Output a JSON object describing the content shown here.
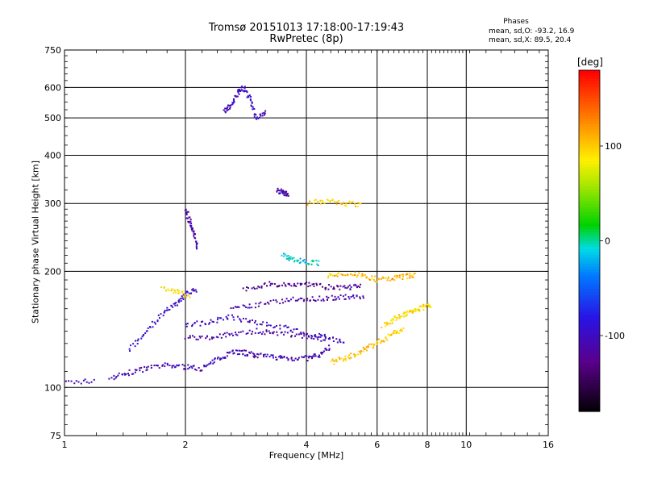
{
  "header": {
    "title_line1": "Tromsø 20151013 17:18:00-17:19:43",
    "title_line2": "RwPretec (8p)",
    "phases_title": "Phases",
    "phases_o": "mean, sd,O:  -93.2, 16.9",
    "phases_x": "mean, sd,X:  89.5, 20.4"
  },
  "colors": {
    "grid": "#000000",
    "background": "#ffffff"
  },
  "colorbar": {
    "label": "[deg]",
    "min": -180,
    "max": 180,
    "ticks": [
      100,
      0,
      -100
    ],
    "tick_labels": [
      "100",
      "0",
      "-100"
    ]
  },
  "chart_data": {
    "type": "scatter",
    "title": "Tromsø 20151013 17:18:00-17:19:43",
    "subtitle": "RwPretec (8p)",
    "xlabel": "Frequency [MHz]",
    "ylabel": "Stationary phase Virtual Height [km]",
    "x_scale": "log",
    "y_scale": "log",
    "xlim": [
      1,
      16
    ],
    "ylim": [
      75,
      750
    ],
    "x_gridlines": [
      2,
      4,
      6,
      8,
      10
    ],
    "y_gridlines": [
      100,
      200,
      300,
      400,
      500,
      600
    ],
    "x_ticks": [
      1,
      2,
      4,
      6,
      8,
      10,
      16
    ],
    "x_tick_labels": [
      "1",
      "2",
      "4",
      "6",
      "8",
      "10",
      "16"
    ],
    "y_ticks": [
      75,
      100,
      200,
      300,
      400,
      500,
      600,
      750
    ],
    "y_tick_labels": [
      "75",
      "100",
      "200",
      "300",
      "400",
      "500",
      "600",
      "750"
    ],
    "color_variable": "phase [deg]",
    "traces": [
      {
        "f": [
          1.0,
          1.2
        ],
        "h": [
          103,
          104
        ],
        "phase": -110
      },
      {
        "f": [
          1.3,
          1.45,
          1.6,
          1.8,
          2.0,
          2.2,
          2.4,
          2.6,
          2.8,
          3.0,
          3.3,
          3.6,
          4.0,
          4.3,
          4.6
        ],
        "h": [
          106,
          109,
          112,
          114,
          113,
          112,
          118,
          124,
          123,
          121,
          120,
          119,
          119,
          121,
          128
        ],
        "phase": -105
      },
      {
        "f": [
          4.6,
          5.0,
          5.4,
          5.8,
          6.2,
          6.6,
          7.0
        ],
        "h": [
          116,
          119,
          123,
          128,
          133,
          138,
          142
        ],
        "phase": 105
      },
      {
        "f": [
          6.2,
          6.6,
          7.0,
          7.4,
          7.8,
          8.2
        ],
        "h": [
          145,
          150,
          155,
          158,
          161,
          164
        ],
        "phase": 95
      },
      {
        "f": [
          1.45,
          1.6,
          1.75,
          1.9,
          2.0,
          2.15
        ],
        "h": [
          125,
          140,
          155,
          165,
          175,
          180
        ],
        "phase": -95
      },
      {
        "f": [
          2.0,
          2.3,
          2.6,
          3.0,
          3.5,
          4.0,
          4.5,
          5.0
        ],
        "h": [
          145,
          148,
          152,
          148,
          143,
          138,
          135,
          130
        ],
        "phase": -100
      },
      {
        "f": [
          2.0,
          2.3,
          2.6,
          3.0,
          3.4,
          4.0,
          4.5
        ],
        "h": [
          135,
          134,
          138,
          140,
          138,
          136,
          132
        ],
        "phase": -115
      },
      {
        "f": [
          2.6,
          3.0,
          3.5,
          4.0,
          4.5,
          5.0,
          5.6
        ],
        "h": [
          160,
          163,
          168,
          170,
          170,
          172,
          170
        ],
        "phase": -110
      },
      {
        "f": [
          2.8,
          3.2,
          3.6,
          4.0,
          4.5,
          5.0,
          5.5
        ],
        "h": [
          180,
          185,
          185,
          186,
          182,
          181,
          184
        ],
        "phase": -125
      },
      {
        "f": [
          1.75,
          1.9,
          2.05
        ],
        "h": [
          180,
          177,
          172
        ],
        "phase": 90
      },
      {
        "f": [
          4.5,
          5.0,
          5.5,
          6.0,
          6.5,
          7.0,
          7.5
        ],
        "h": [
          195,
          196,
          196,
          190,
          192,
          194,
          196
        ],
        "phase": 110
      },
      {
        "f": [
          2.0,
          2.05,
          2.1,
          2.15
        ],
        "h": [
          290,
          270,
          250,
          230
        ],
        "phase": -110
      },
      {
        "f": [
          2.5,
          2.6,
          2.7,
          2.8,
          2.9,
          3.0,
          3.2
        ],
        "h": [
          520,
          540,
          580,
          600,
          560,
          500,
          520
        ],
        "phase": -100
      },
      {
        "f": [
          3.4,
          3.5,
          3.6
        ],
        "h": [
          325,
          320,
          318
        ],
        "phase": -110
      },
      {
        "f": [
          3.5,
          3.7,
          4.0,
          4.3
        ],
        "h": [
          220,
          215,
          212,
          210
        ],
        "phase": -10
      },
      {
        "f": [
          4.0,
          4.5,
          5.0,
          5.5
        ],
        "h": [
          300,
          305,
          300,
          298
        ],
        "phase": 100
      }
    ]
  }
}
